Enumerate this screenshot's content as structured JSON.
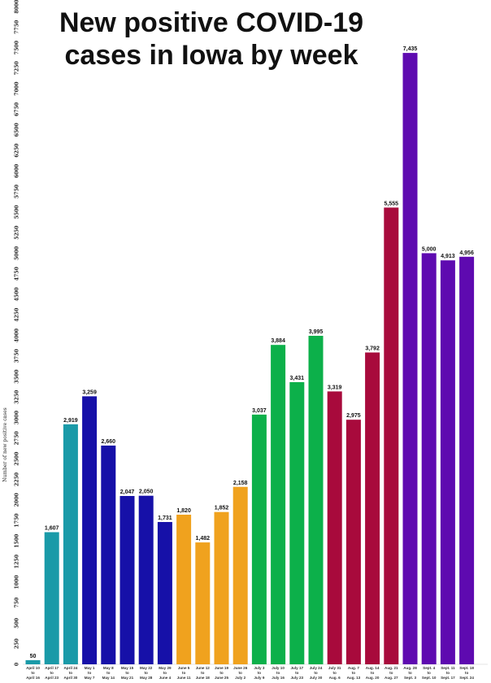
{
  "chart_data": {
    "type": "bar",
    "title_line1": "New positive COVID-19",
    "title_line2": "cases in Iowa by week",
    "ylabel": "Number of new positive cases",
    "xlabel": "",
    "ylim": [
      0,
      8000
    ],
    "yticks": [
      "0",
      "250",
      "500",
      "750",
      "1000",
      "1250",
      "1500",
      "1750",
      "2000",
      "2250",
      "2500",
      "2750",
      "3000",
      "3250",
      "3500",
      "3750",
      "4000",
      "4250",
      "4500",
      "4750",
      "5000",
      "5250",
      "5500",
      "5750",
      "6000",
      "6250",
      "6500",
      "6750",
      "7000",
      "7250",
      "7500",
      "7750",
      "8000"
    ],
    "bars": [
      {
        "l1": "April 10",
        "l2": "to",
        "l3": "April 16",
        "value": 50,
        "label": "50",
        "color": "#1a9aa8"
      },
      {
        "l1": "April 17",
        "l2": "to",
        "l3": "April 23",
        "value": 1607,
        "label": "1,607",
        "color": "#1a9aa8"
      },
      {
        "l1": "April 24",
        "l2": "to",
        "l3": "April 30",
        "value": 2919,
        "label": "2,919",
        "color": "#1a9aa8"
      },
      {
        "l1": "May 1",
        "l2": "to",
        "l3": "May 7",
        "value": 3259,
        "label": "3,259",
        "color": "#1610a8"
      },
      {
        "l1": "May 8",
        "l2": "to",
        "l3": "May 14",
        "value": 2660,
        "label": "2,660",
        "color": "#1610a8"
      },
      {
        "l1": "May 15",
        "l2": "to",
        "l3": "May 21",
        "value": 2047,
        "label": "2,047",
        "color": "#1610a8"
      },
      {
        "l1": "May 22",
        "l2": "to",
        "l3": "May 28",
        "value": 2050,
        "label": "2,050",
        "color": "#1610a8"
      },
      {
        "l1": "May 29",
        "l2": "to",
        "l3": "June 4",
        "value": 1731,
        "label": "1,731",
        "color": "#1610a8"
      },
      {
        "l1": "June 5",
        "l2": "to",
        "l3": "June 11",
        "value": 1820,
        "label": "1,820",
        "color": "#f0a21e"
      },
      {
        "l1": "June 12",
        "l2": "to",
        "l3": "June 18",
        "value": 1482,
        "label": "1,482",
        "color": "#f0a21e"
      },
      {
        "l1": "June 19",
        "l2": "to",
        "l3": "June 25",
        "value": 1852,
        "label": "1,852",
        "color": "#f0a21e"
      },
      {
        "l1": "June 26",
        "l2": "to",
        "l3": "July 2",
        "value": 2158,
        "label": "2,158",
        "color": "#f0a21e"
      },
      {
        "l1": "July 3",
        "l2": "to",
        "l3": "July 9",
        "value": 3037,
        "label": "3,037",
        "color": "#0cb04a"
      },
      {
        "l1": "July 10",
        "l2": "to",
        "l3": "July 16",
        "value": 3884,
        "label": "3,884",
        "color": "#0cb04a"
      },
      {
        "l1": "July 17",
        "l2": "to",
        "l3": "July 23",
        "value": 3431,
        "label": "3,431",
        "color": "#0cb04a"
      },
      {
        "l1": "July 24",
        "l2": "to",
        "l3": "July 30",
        "value": 3995,
        "label": "3,995",
        "color": "#0cb04a"
      },
      {
        "l1": "July 31",
        "l2": "to",
        "l3": "Aug. 6",
        "value": 3319,
        "label": "3,319",
        "color": "#a80a3c"
      },
      {
        "l1": "Aug. 7",
        "l2": "to",
        "l3": "Aug. 13",
        "value": 2975,
        "label": "2,975",
        "color": "#a80a3c"
      },
      {
        "l1": "Aug. 14",
        "l2": "to",
        "l3": "Aug. 20",
        "value": 3792,
        "label": "3,792",
        "color": "#a80a3c"
      },
      {
        "l1": "Aug. 21",
        "l2": "to",
        "l3": "Aug. 27",
        "value": 5555,
        "label": "5,555",
        "color": "#a80a3c"
      },
      {
        "l1": "Aug. 28",
        "l2": "to",
        "l3": "Sept. 3",
        "value": 7435,
        "label": "7,435",
        "color": "#5e0ab0"
      },
      {
        "l1": "Sept. 4",
        "l2": "to",
        "l3": "Sept. 10",
        "value": 5000,
        "label": "5,000",
        "color": "#5e0ab0"
      },
      {
        "l1": "Sept. 11",
        "l2": "to",
        "l3": "Sept. 17",
        "value": 4913,
        "label": "4,913",
        "color": "#5e0ab0"
      },
      {
        "l1": "Sept. 18",
        "l2": "to",
        "l3": "Sept. 24",
        "value": 4956,
        "label": "4,956",
        "color": "#5e0ab0"
      }
    ],
    "grid": false
  }
}
